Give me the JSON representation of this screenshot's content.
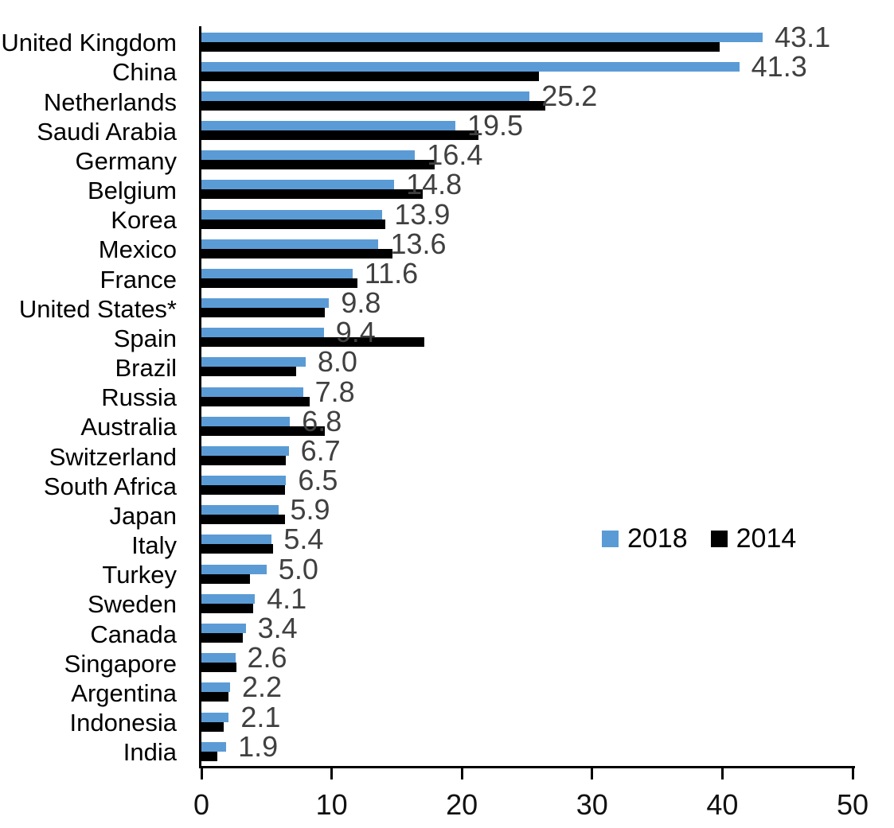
{
  "chart_data": {
    "type": "bar",
    "orientation": "horizontal",
    "title": "",
    "xlabel": "",
    "ylabel": "",
    "xlim": [
      0,
      50
    ],
    "x_ticks": [
      "0",
      "10",
      "20",
      "30",
      "40",
      "50"
    ],
    "grid": false,
    "legend_position": "middle-right",
    "value_label_color": "#404040",
    "categories": [
      "United Kingdom",
      "China",
      "Netherlands",
      "Saudi Arabia",
      "Germany",
      "Belgium",
      "Korea",
      "Mexico",
      "France",
      "United States*",
      "Spain",
      "Brazil",
      "Russia",
      "Australia",
      "Switzerland",
      "South Africa",
      "Japan",
      "Italy",
      "Turkey",
      "Sweden",
      "Canada",
      "Singapore",
      "Argentina",
      "Indonesia",
      "India"
    ],
    "series": [
      {
        "name": "2018",
        "color": "#5B9BD5",
        "values": [
          43.1,
          41.3,
          25.2,
          19.5,
          16.4,
          14.8,
          13.9,
          13.6,
          11.6,
          9.8,
          9.4,
          8.0,
          7.8,
          6.8,
          6.7,
          6.5,
          5.9,
          5.4,
          5.0,
          4.1,
          3.4,
          2.6,
          2.2,
          2.1,
          1.9
        ],
        "labels": [
          "43.1",
          "41.3",
          "25.2",
          "19.5",
          "16.4",
          "14.8",
          "13.9",
          "13.6",
          "11.6",
          "9.8",
          "9.4",
          "8.0",
          "7.8",
          "6.8",
          "6.7",
          "6.5",
          "5.9",
          "5.4",
          "5.0",
          "4.1",
          "3.4",
          "2.6",
          "2.2",
          "2.1",
          "1.9"
        ],
        "labels_shown": true
      },
      {
        "name": "2014",
        "color": "#000000",
        "values": [
          39.8,
          25.9,
          26.4,
          21.3,
          17.9,
          17.0,
          14.1,
          14.7,
          12.0,
          9.5,
          17.1,
          7.3,
          8.3,
          9.5,
          6.5,
          6.4,
          6.4,
          5.5,
          3.7,
          4.0,
          3.2,
          2.7,
          2.1,
          1.7,
          1.2
        ],
        "labels_shown": false
      }
    ]
  }
}
